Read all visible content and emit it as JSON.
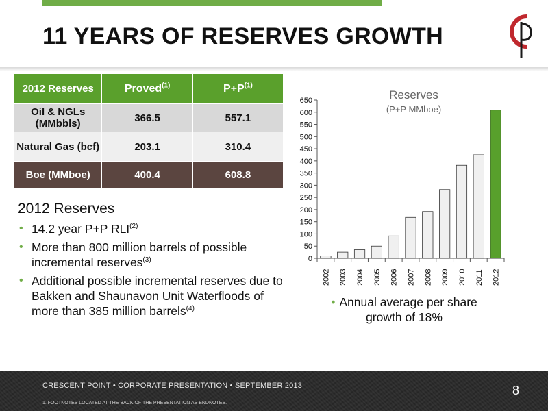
{
  "title": "11 YEARS OF RESERVES GROWTH",
  "table": {
    "header": {
      "col0": "2012 Reserves",
      "col1": "Proved",
      "col1_sup": "(1)",
      "col2": "P+P",
      "col2_sup": "(1)"
    },
    "rows": [
      {
        "label": "Oil & NGLs (MMbbls)",
        "proved": "366.5",
        "pp": "557.1"
      },
      {
        "label": "Natural Gas (bcf)",
        "proved": "203.1",
        "pp": "310.4"
      },
      {
        "label": "Boe (MMboe)",
        "proved": "400.4",
        "pp": "608.8"
      }
    ]
  },
  "section": {
    "title": "2012 Reserves",
    "bullets": [
      {
        "text": "14.2 year P+P RLI",
        "sup": "(2)",
        "tail": ""
      },
      {
        "text": "More than 800 million barrels of possible incremental reserves",
        "sup": "(3)",
        "tail": ""
      },
      {
        "text": "Additional possible incremental reserves due to Bakken and Shaunavon Unit Waterfloods of more than 385 million barrels",
        "sup": "(4)",
        "tail": ""
      }
    ]
  },
  "chart_note": "Annual average per share growth of 18%",
  "chart_data": {
    "type": "bar",
    "title": "Reserves",
    "subtitle": "(P+P MMboe)",
    "categories": [
      "2002",
      "2003",
      "2004",
      "2005",
      "2006",
      "2007",
      "2008",
      "2009",
      "2010",
      "2011",
      "2012"
    ],
    "values": [
      10,
      25,
      35,
      50,
      92,
      168,
      192,
      282,
      382,
      425,
      608.8
    ],
    "ylim": [
      0,
      650
    ],
    "yticks": [
      0,
      50,
      100,
      150,
      200,
      250,
      300,
      350,
      400,
      450,
      500,
      550,
      600,
      650
    ],
    "bar_color": "#f0f0f0",
    "highlight_color": "#58a02c",
    "highlight_index": 10,
    "grid": false
  },
  "footer": {
    "line": "CRESCENT POINT  •  CORPORATE PRESENTATION  •  SEPTEMBER 2013",
    "note": "1.      FOOTNOTES LOCATED AT THE BACK OF THE PRESENTATION AS ENDNOTES.",
    "page": "8"
  },
  "colors": {
    "accent": "#70ad47",
    "table_header": "#5aa02c",
    "boe_row": "#5b4540",
    "logo_red": "#c0282e"
  }
}
